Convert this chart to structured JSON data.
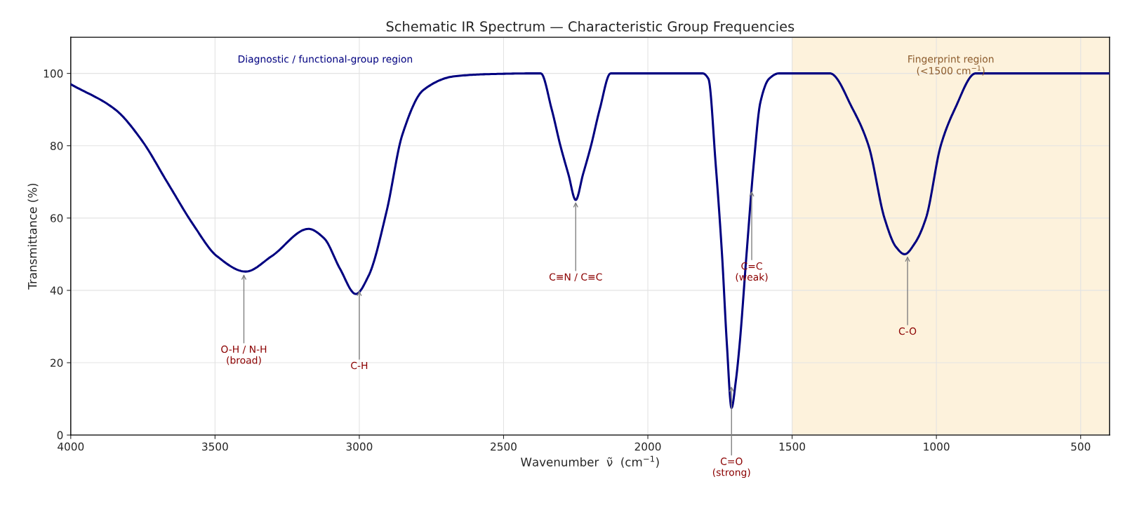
{
  "chart_data": {
    "type": "line",
    "title": "Schematic IR Spectrum — Characteristic Group Frequencies",
    "xlabel": "Wavenumber  ν̃  (cm$^{−1}$)",
    "ylabel": "Transmittance (%)",
    "xlim": [
      4000,
      400
    ],
    "ylim": [
      0,
      110
    ],
    "xticks": [
      4000,
      3500,
      3000,
      2500,
      2000,
      1500,
      1000,
      500
    ],
    "yticks": [
      0,
      20,
      40,
      60,
      80,
      100
    ],
    "grid": true,
    "marker": "none",
    "line_style": "solid",
    "series": [
      {
        "color": "#000080",
        "x": [
          4000,
          3844,
          3754,
          3664,
          3574,
          3494,
          3394,
          3303,
          3176,
          3122,
          3067,
          3012,
          2968,
          2905,
          2851,
          2778,
          2670,
          2550,
          2400,
          2371,
          2333,
          2303,
          2275,
          2250,
          2225,
          2197,
          2167,
          2129,
          2000,
          1850,
          1810,
          1790,
          1765,
          1743,
          1726,
          1710,
          1695,
          1682,
          1658,
          1633,
          1610,
          1580,
          1546,
          1450,
          1369,
          1289,
          1235,
          1180,
          1140,
          1110,
          1075,
          1036,
          985,
          937,
          864,
          800,
          700,
          400
        ],
        "values": [
          97,
          89.9,
          81.5,
          69.7,
          58,
          49.5,
          45.2,
          49.5,
          57,
          54.4,
          46,
          39,
          44,
          62,
          83,
          95.4,
          99.2,
          99.8,
          100,
          100,
          90,
          80,
          72,
          65,
          72,
          80,
          90,
          100,
          100,
          100,
          100,
          98.5,
          75,
          50,
          25,
          7.5,
          15,
          25,
          50,
          75,
          92,
          98.5,
          100,
          100,
          100,
          90,
          80,
          60,
          52,
          50,
          53,
          60,
          80,
          90,
          100,
          100,
          100,
          100
        ]
      }
    ],
    "bands": [
      {
        "axis": "x",
        "from": 1500,
        "to": 400,
        "label": "Fingerprint region\n(<1500 cm$^{−1}$)",
        "color": "#fdf2dc"
      }
    ],
    "annotations": [
      "Diagnostic / functional-group region",
      {
        "text": "O-H / N-H\n(broad)",
        "x": 3400,
        "y": 45
      },
      {
        "text": "C-H",
        "x": 3000,
        "y": 40.5
      },
      {
        "text": "C≡N / C≡C",
        "x": 2250,
        "y": 65
      },
      {
        "text": "C=C\n(weak)",
        "x": 1640,
        "y": 68
      },
      {
        "text": "C=O\n(strong)",
        "x": 1710,
        "y": 14
      },
      {
        "text": "C-O",
        "x": 1100,
        "y": 50
      }
    ]
  }
}
